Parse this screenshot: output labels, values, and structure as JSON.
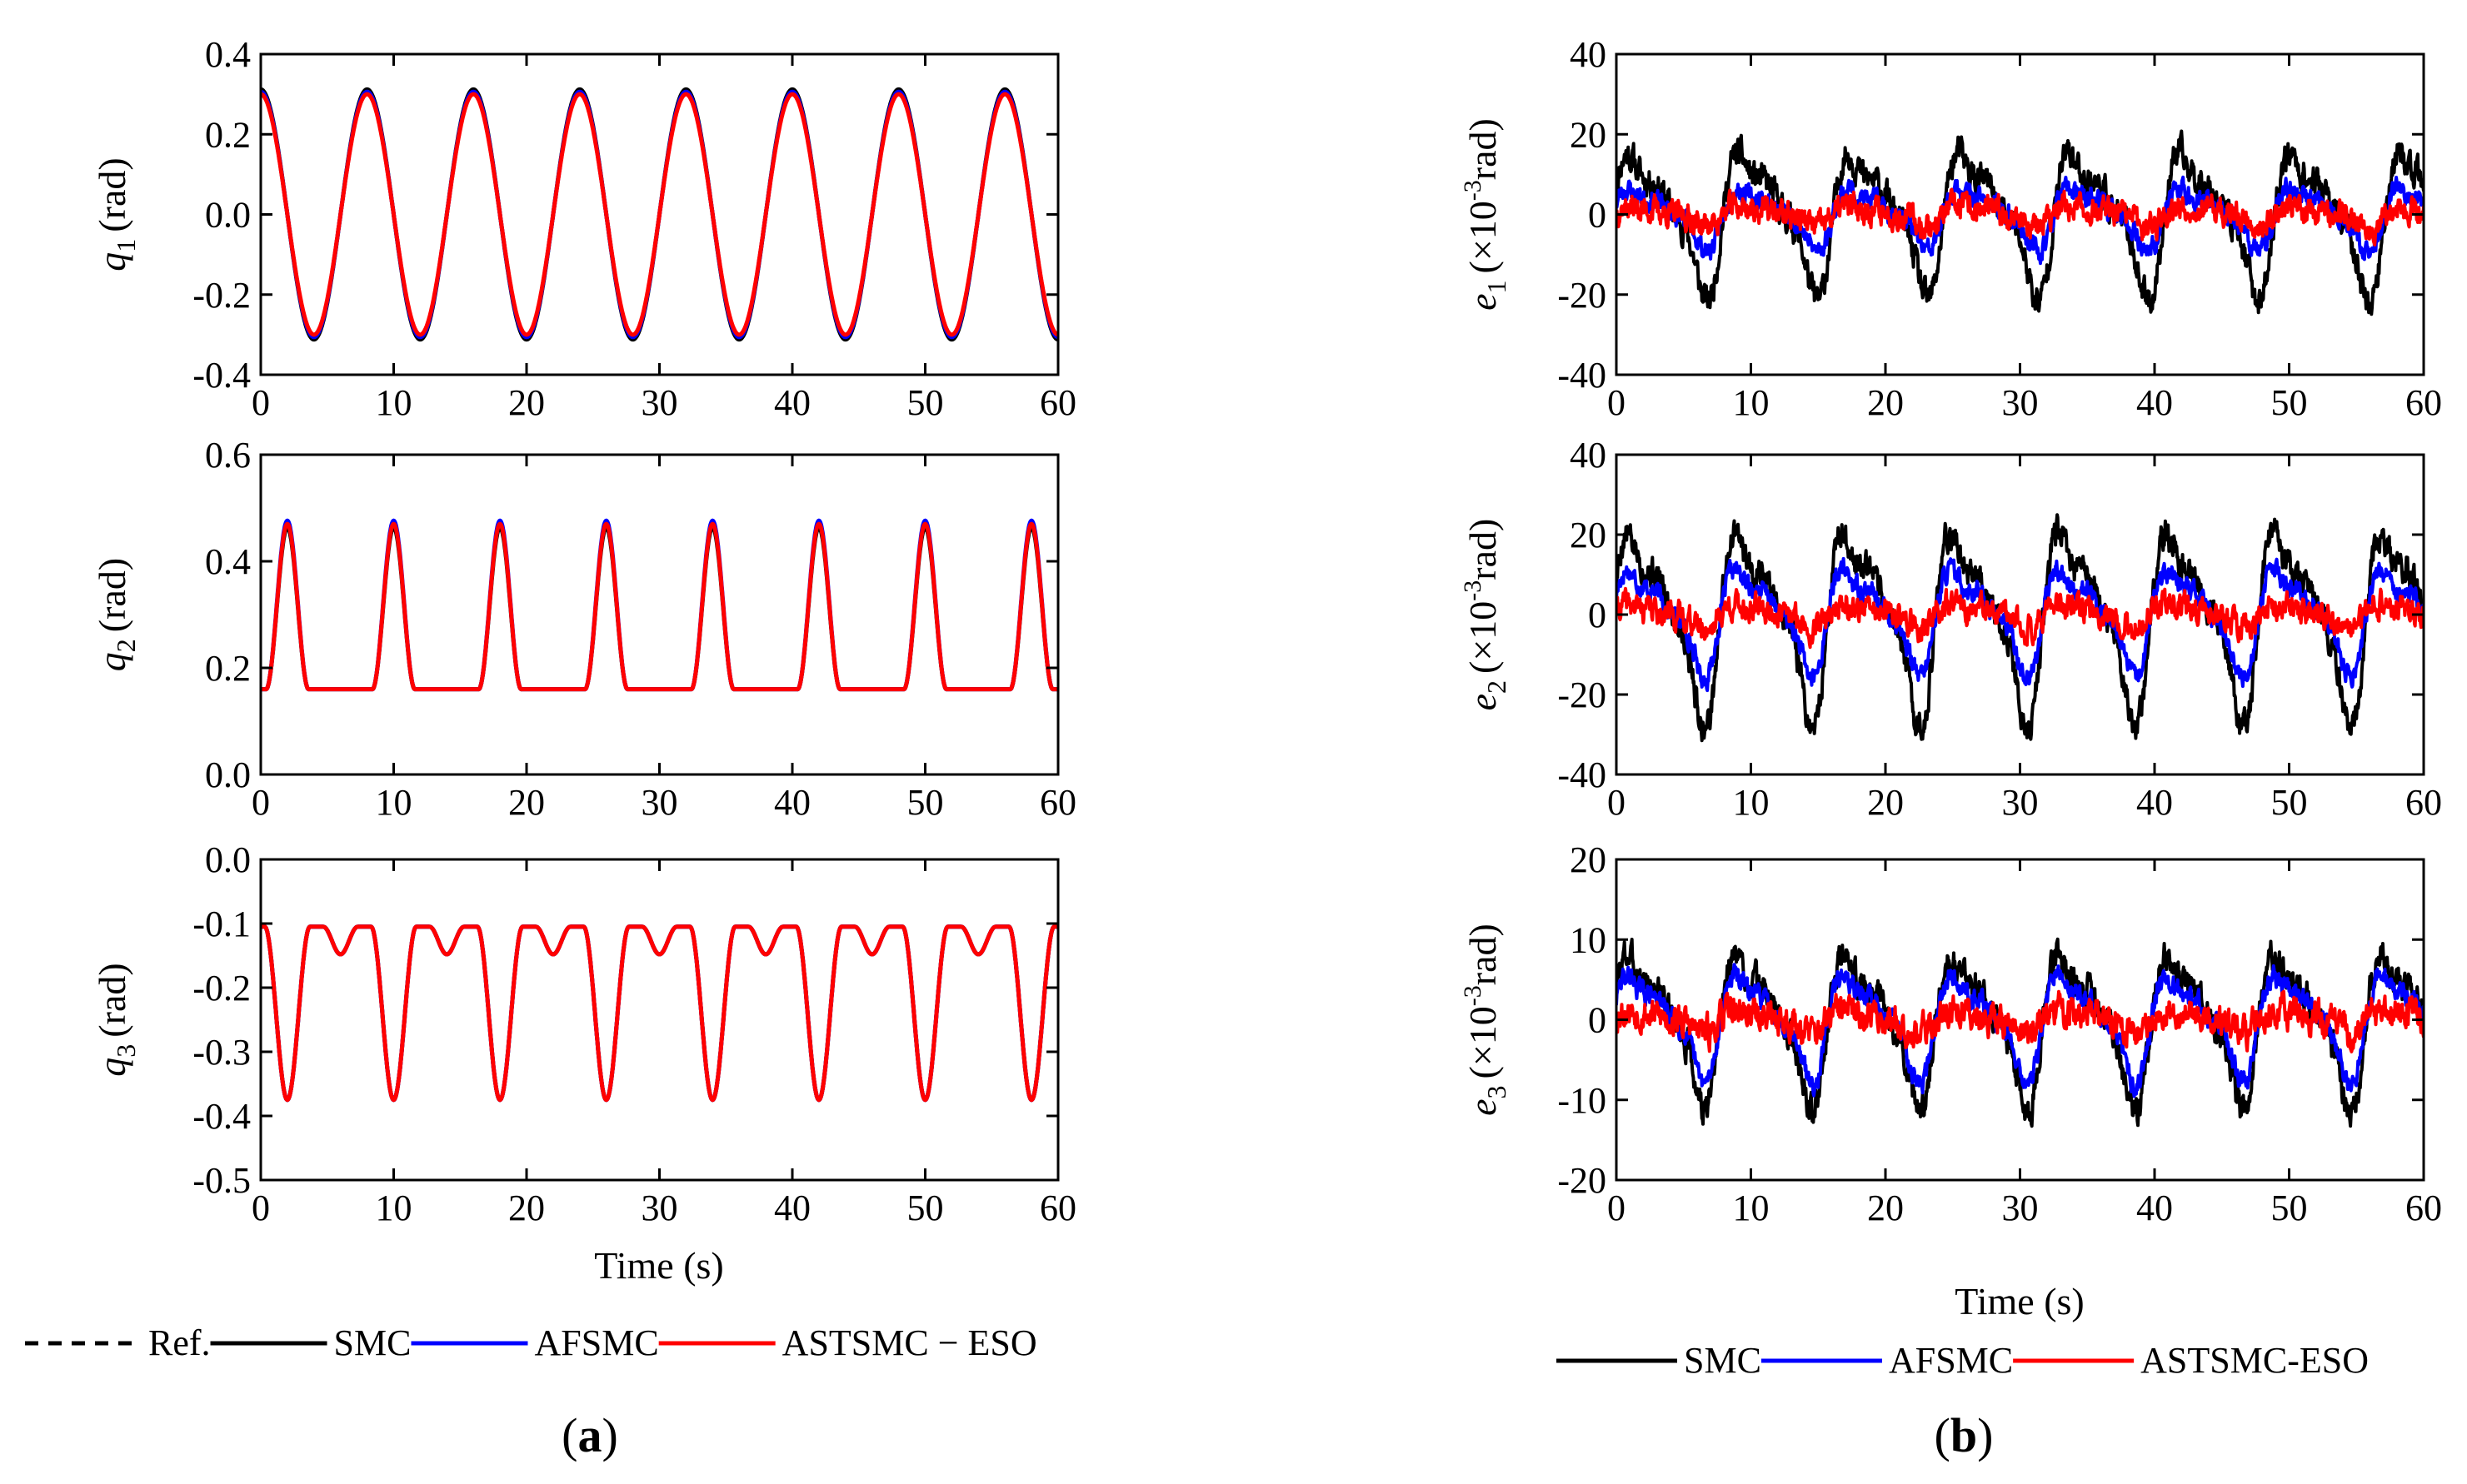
{
  "chart_data": [
    {
      "id": "q1",
      "panel": "a",
      "type": "line",
      "ylabel_var": "q",
      "ylabel_sub": "1",
      "ylabel_unit": "(rad)",
      "xlim": [
        0,
        60
      ],
      "ylim": [
        -0.4,
        0.4
      ],
      "xticks": [
        "0",
        "10",
        "20",
        "30",
        "40",
        "50",
        "60"
      ],
      "yticks": [
        "0.4",
        "0.2",
        "0.0",
        "-0.2",
        "-0.4"
      ],
      "shape": "sine",
      "period": 8,
      "phase": 0,
      "offset": 0,
      "amplitude": 0.3,
      "series": [
        {
          "name": "SMC",
          "color": "#000000",
          "scale": 1.04,
          "shift": 0.0
        },
        {
          "name": "AFSMC",
          "color": "#0000ff",
          "scale": 1.02,
          "shift": 0.0
        },
        {
          "name": "ASTSMC - ESO",
          "color": "#ff0000",
          "scale": 1.0,
          "shift": 0.0
        }
      ]
    },
    {
      "id": "q2",
      "panel": "a",
      "type": "line",
      "ylabel_var": "q",
      "ylabel_sub": "2",
      "ylabel_unit": "(rad)",
      "xlim": [
        0,
        60
      ],
      "ylim": [
        0.0,
        0.6
      ],
      "xticks": [
        "0",
        "10",
        "20",
        "30",
        "40",
        "50",
        "60"
      ],
      "yticks": [
        "0.6",
        "0.4",
        "0.2",
        "0.0"
      ],
      "shape": "pulse",
      "period": 8,
      "center": 2,
      "base": 0.16,
      "peak": 0.47,
      "width": 3.2,
      "series": [
        {
          "name": "SMC",
          "color": "#000000",
          "scale": 0.98,
          "shift": 0.0
        },
        {
          "name": "AFSMC",
          "color": "#0000ff",
          "scale": 1.02,
          "shift": 0.0
        },
        {
          "name": "ASTSMC - ESO",
          "color": "#ff0000",
          "scale": 1.0,
          "shift": 0.0
        }
      ]
    },
    {
      "id": "q3",
      "panel": "a",
      "type": "line",
      "ylabel_var": "q",
      "ylabel_sub": "3",
      "ylabel_unit": "(rad)",
      "xlim": [
        0,
        60
      ],
      "ylim": [
        -0.5,
        0.0
      ],
      "xticks": [
        "0",
        "10",
        "20",
        "30",
        "40",
        "50",
        "60"
      ],
      "yticks": [
        "0.0",
        "-0.1",
        "-0.2",
        "-0.3",
        "-0.4",
        "-0.5"
      ],
      "shape": "dip",
      "period": 8,
      "base": -0.105,
      "deep": -0.375,
      "deep_center": 2,
      "shallow": -0.148,
      "shallow_center": 6,
      "series": [
        {
          "name": "SMC",
          "color": "#000000",
          "scale": 1.0,
          "shift": 0.0
        },
        {
          "name": "AFSMC",
          "color": "#0000ff",
          "scale": 1.0,
          "shift": 0.0
        },
        {
          "name": "ASTSMC - ESO",
          "color": "#ff0000",
          "scale": 1.0,
          "shift": 0.0
        }
      ]
    },
    {
      "id": "e1",
      "panel": "b",
      "type": "line",
      "ylabel_var": "e",
      "ylabel_sub": "1",
      "ylabel_unit_pre": "(×10",
      "ylabel_unit_exp": "-3",
      "ylabel_unit_post": "rad)",
      "xlim": [
        0,
        60
      ],
      "ylim": [
        -40,
        40
      ],
      "xticks": [
        "0",
        "10",
        "20",
        "30",
        "40",
        "50",
        "60"
      ],
      "yticks": [
        "40",
        "20",
        "0",
        "-20",
        "-40"
      ],
      "shape": "error",
      "period": 8.2,
      "series": [
        {
          "name": "SMC",
          "color": "#000000",
          "amp": 19,
          "noise": 3.0,
          "seed": 11
        },
        {
          "name": "AFSMC",
          "color": "#0000ff",
          "amp": 8,
          "noise": 2.0,
          "seed": 23
        },
        {
          "name": "ASTSMC-ESO",
          "color": "#ff0000",
          "amp": 2.5,
          "noise": 2.5,
          "seed": 37
        }
      ]
    },
    {
      "id": "e2",
      "panel": "b",
      "type": "line",
      "ylabel_var": "e",
      "ylabel_sub": "2",
      "ylabel_unit_pre": "(×10",
      "ylabel_unit_exp": "-3",
      "ylabel_unit_post": "rad)",
      "xlim": [
        0,
        60
      ],
      "ylim": [
        -40,
        40
      ],
      "xticks": [
        "0",
        "10",
        "20",
        "30",
        "40",
        "50",
        "60"
      ],
      "yticks": [
        "40",
        "20",
        "0",
        "-20",
        "-40"
      ],
      "shape": "error",
      "period": 8.0,
      "series": [
        {
          "name": "SMC",
          "color": "#000000",
          "amp": 25,
          "noise": 3.0,
          "seed": 5
        },
        {
          "name": "AFSMC",
          "color": "#0000ff",
          "amp": 14,
          "noise": 2.0,
          "seed": 17
        },
        {
          "name": "ASTSMC-ESO",
          "color": "#ff0000",
          "amp": 3,
          "noise": 2.5,
          "seed": 41
        }
      ]
    },
    {
      "id": "e3",
      "panel": "b",
      "type": "line",
      "ylabel_var": "e",
      "ylabel_sub": "3",
      "ylabel_unit_pre": "(×10",
      "ylabel_unit_exp": "-3",
      "ylabel_unit_post": "rad)",
      "xlim": [
        0,
        60
      ],
      "ylim": [
        -20,
        20
      ],
      "xticks": [
        "0",
        "10",
        "20",
        "30",
        "40",
        "50",
        "60"
      ],
      "yticks": [
        "20",
        "10",
        "0",
        "-10",
        "-20"
      ],
      "shape": "error",
      "period": 8.0,
      "series": [
        {
          "name": "SMC",
          "color": "#000000",
          "amp": 10,
          "noise": 1.5,
          "seed": 3
        },
        {
          "name": "AFSMC",
          "color": "#0000ff",
          "amp": 7,
          "noise": 1.0,
          "seed": 29
        },
        {
          "name": "ASTSMC-ESO",
          "color": "#ff0000",
          "amp": 1.5,
          "noise": 1.5,
          "seed": 53
        }
      ]
    }
  ],
  "xlabel_a": "Time (s)",
  "xlabel_b": "Time (s)",
  "legend_a": [
    {
      "label": "Ref.",
      "color": "#000000",
      "dashed": true
    },
    {
      "label": "SMC",
      "color": "#000000",
      "dashed": false
    },
    {
      "label": "AFSMC",
      "color": "#0000ff",
      "dashed": false
    },
    {
      "label": "ASTSMC − ESO",
      "color": "#ff0000",
      "dashed": false
    }
  ],
  "legend_b": [
    {
      "label": "SMC",
      "color": "#000000",
      "dashed": false
    },
    {
      "label": "AFSMC",
      "color": "#0000ff",
      "dashed": false
    },
    {
      "label": "ASTSMC-ESO",
      "color": "#ff0000",
      "dashed": false
    }
  ],
  "sublabel_a": "a",
  "sublabel_b": "b"
}
